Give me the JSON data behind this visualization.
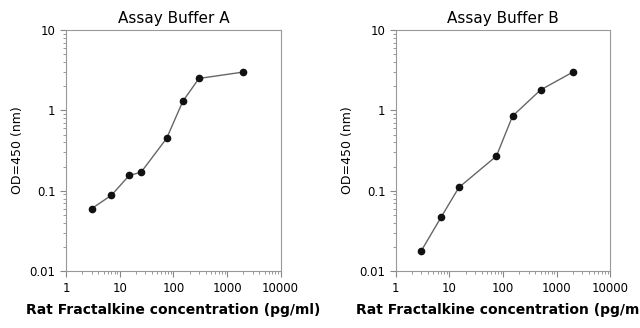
{
  "chart_A": {
    "title": "Assay Buffer A",
    "x": [
      3,
      7,
      15,
      25,
      75,
      150,
      300,
      2000
    ],
    "y": [
      0.06,
      0.088,
      0.155,
      0.17,
      0.45,
      1.3,
      2.5,
      3.0
    ]
  },
  "chart_B": {
    "title": "Assay Buffer B",
    "x": [
      3,
      7,
      15,
      75,
      150,
      500,
      2000
    ],
    "y": [
      0.018,
      0.047,
      0.11,
      0.27,
      0.85,
      1.8,
      3.0
    ]
  },
  "xlabel": "Rat Fractalkine concentration (pg/ml)",
  "ylabel": "OD=450 (nm)",
  "xlim": [
    1,
    10000
  ],
  "ylim": [
    0.01,
    10
  ],
  "line_color": "#666666",
  "marker_color": "#111111",
  "background_color": "#ffffff",
  "axes_edge_color": "#999999",
  "title_fontsize": 11,
  "tick_fontsize": 8.5,
  "xlabel_fontsize": 10,
  "ylabel_fontsize": 9
}
